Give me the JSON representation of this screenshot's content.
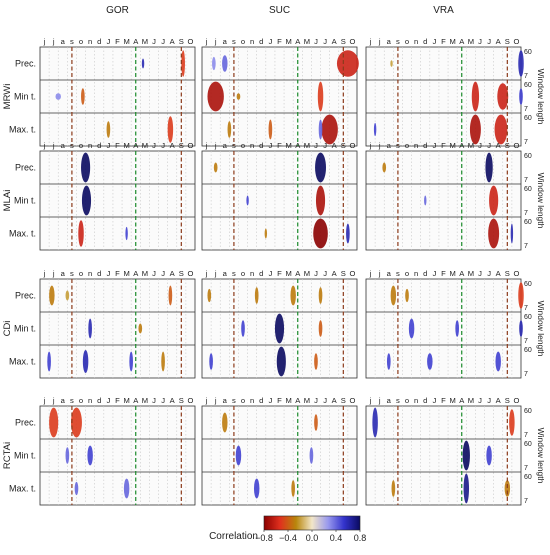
{
  "chart_data": {
    "type": "heatmap",
    "stations": [
      "GOR",
      "SUC",
      "VRA"
    ],
    "indices": [
      "MRWi",
      "MLAi",
      "CDi",
      "RCTAi"
    ],
    "variables": [
      "Prec.",
      "Min t.",
      "Max. t."
    ],
    "month_ticks": [
      "j",
      "j",
      "a",
      "s",
      "o",
      "n",
      "d",
      "J",
      "F",
      "M",
      "A",
      "M",
      "J",
      "J",
      "A",
      "S",
      "O"
    ],
    "window_length_ticks": [
      "60",
      "7"
    ],
    "window_length_label": "Window length",
    "colorbar": {
      "label": "Correlation",
      "ticks": [
        "−0.8",
        "−0.4",
        "0.0",
        "0.4",
        "0.8"
      ],
      "range": [
        -0.8,
        0.8
      ],
      "colors": [
        "#8b0000",
        "#e0301e",
        "#b8860b",
        "#f2e6c8",
        "#9999ee",
        "#3333cc",
        "#0a0a60"
      ]
    },
    "reference_lines": {
      "brown_dashed_months": [
        3.5,
        15.5
      ],
      "green_dashed_month": 10.5
    },
    "blobs": [
      {
        "row": 0,
        "st": 0,
        "v": 0,
        "m": 10.8,
        "w": 0.1,
        "r": 0.3,
        "c": 0.6
      },
      {
        "row": 0,
        "st": 0,
        "v": 0,
        "m": 15.2,
        "w": 0.2,
        "r": 0.8,
        "c": -0.5
      },
      {
        "row": 0,
        "st": 0,
        "v": 1,
        "m": 1.5,
        "w": 0.3,
        "r": 0.2,
        "c": 0.3
      },
      {
        "row": 0,
        "st": 0,
        "v": 1,
        "m": 4.2,
        "w": 0.2,
        "r": 0.5,
        "c": -0.4
      },
      {
        "row": 0,
        "st": 0,
        "v": 2,
        "m": 7.0,
        "w": 0.2,
        "r": 0.5,
        "c": -0.3
      },
      {
        "row": 0,
        "st": 0,
        "v": 2,
        "m": 13.8,
        "w": 0.3,
        "r": 0.8,
        "c": -0.5
      },
      {
        "row": 0,
        "st": 1,
        "v": 0,
        "m": 0.8,
        "w": 0.2,
        "r": 0.4,
        "c": 0.3
      },
      {
        "row": 0,
        "st": 1,
        "v": 0,
        "m": 2.0,
        "w": 0.3,
        "r": 0.5,
        "c": 0.4
      },
      {
        "row": 0,
        "st": 1,
        "v": 0,
        "m": 15.5,
        "w": 1.2,
        "r": 0.8,
        "c": -0.6
      },
      {
        "row": 0,
        "st": 1,
        "v": 1,
        "m": 1.0,
        "w": 0.9,
        "r": 0.9,
        "c": -0.7
      },
      {
        "row": 0,
        "st": 1,
        "v": 1,
        "m": 3.5,
        "w": 0.2,
        "r": 0.2,
        "c": -0.3
      },
      {
        "row": 0,
        "st": 1,
        "v": 1,
        "m": 12.5,
        "w": 0.3,
        "r": 0.9,
        "c": -0.5
      },
      {
        "row": 0,
        "st": 1,
        "v": 2,
        "m": 2.5,
        "w": 0.2,
        "r": 0.5,
        "c": -0.3
      },
      {
        "row": 0,
        "st": 1,
        "v": 2,
        "m": 7.0,
        "w": 0.2,
        "r": 0.6,
        "c": -0.4
      },
      {
        "row": 0,
        "st": 1,
        "v": 2,
        "m": 13.5,
        "w": 0.9,
        "r": 0.9,
        "c": -0.7
      },
      {
        "row": 0,
        "st": 1,
        "v": 2,
        "m": 12.5,
        "w": 0.2,
        "r": 0.6,
        "c": 0.4
      },
      {
        "row": 0,
        "st": 2,
        "v": 0,
        "m": 16.5,
        "w": 0.3,
        "r": 0.8,
        "c": 0.6
      },
      {
        "row": 0,
        "st": 2,
        "v": 0,
        "m": 2.3,
        "w": 0.1,
        "r": 0.2,
        "c": -0.2
      },
      {
        "row": 0,
        "st": 2,
        "v": 1,
        "m": 11.5,
        "w": 0.4,
        "r": 0.9,
        "c": -0.6
      },
      {
        "row": 0,
        "st": 2,
        "v": 1,
        "m": 14.5,
        "w": 0.6,
        "r": 0.8,
        "c": -0.6
      },
      {
        "row": 0,
        "st": 2,
        "v": 1,
        "m": 16.5,
        "w": 0.2,
        "r": 0.5,
        "c": 0.5
      },
      {
        "row": 0,
        "st": 2,
        "v": 2,
        "m": 11.5,
        "w": 0.6,
        "r": 0.9,
        "c": -0.7
      },
      {
        "row": 0,
        "st": 2,
        "v": 2,
        "m": 14.3,
        "w": 0.7,
        "r": 0.9,
        "c": -0.6
      },
      {
        "row": 0,
        "st": 2,
        "v": 2,
        "m": 0.5,
        "w": 0.1,
        "r": 0.4,
        "c": 0.5
      },
      {
        "row": 1,
        "st": 0,
        "v": 0,
        "m": 4.5,
        "w": 0.5,
        "r": 0.9,
        "c": 0.8
      },
      {
        "row": 1,
        "st": 0,
        "v": 1,
        "m": 4.6,
        "w": 0.5,
        "r": 0.9,
        "c": 0.8
      },
      {
        "row": 1,
        "st": 0,
        "v": 2,
        "m": 4.0,
        "w": 0.3,
        "r": 0.8,
        "c": -0.6
      },
      {
        "row": 1,
        "st": 0,
        "v": 2,
        "m": 9.0,
        "w": 0.1,
        "r": 0.4,
        "c": 0.5
      },
      {
        "row": 1,
        "st": 1,
        "v": 0,
        "m": 12.5,
        "w": 0.6,
        "r": 0.9,
        "c": 0.8
      },
      {
        "row": 1,
        "st": 1,
        "v": 0,
        "m": 1.0,
        "w": 0.2,
        "r": 0.3,
        "c": -0.3
      },
      {
        "row": 1,
        "st": 1,
        "v": 1,
        "m": 12.5,
        "w": 0.5,
        "r": 0.9,
        "c": -0.7
      },
      {
        "row": 1,
        "st": 1,
        "v": 1,
        "m": 4.5,
        "w": 0.1,
        "r": 0.3,
        "c": 0.5
      },
      {
        "row": 1,
        "st": 1,
        "v": 2,
        "m": 12.5,
        "w": 0.8,
        "r": 0.9,
        "c": -0.8
      },
      {
        "row": 1,
        "st": 1,
        "v": 2,
        "m": 15.5,
        "w": 0.2,
        "r": 0.6,
        "c": 0.6
      },
      {
        "row": 1,
        "st": 1,
        "v": 2,
        "m": 6.5,
        "w": 0.1,
        "r": 0.3,
        "c": -0.3
      },
      {
        "row": 1,
        "st": 2,
        "v": 0,
        "m": 13.0,
        "w": 0.4,
        "r": 0.9,
        "c": 0.8
      },
      {
        "row": 1,
        "st": 2,
        "v": 0,
        "m": 1.5,
        "w": 0.2,
        "r": 0.3,
        "c": -0.3
      },
      {
        "row": 1,
        "st": 2,
        "v": 1,
        "m": 13.5,
        "w": 0.5,
        "r": 0.9,
        "c": -0.6
      },
      {
        "row": 1,
        "st": 2,
        "v": 1,
        "m": 6.0,
        "w": 0.1,
        "r": 0.3,
        "c": 0.4
      },
      {
        "row": 1,
        "st": 2,
        "v": 2,
        "m": 13.5,
        "w": 0.6,
        "r": 0.9,
        "c": -0.7
      },
      {
        "row": 1,
        "st": 2,
        "v": 2,
        "m": 15.5,
        "w": 0.1,
        "r": 0.6,
        "c": 0.6
      },
      {
        "row": 2,
        "st": 0,
        "v": 0,
        "m": 0.8,
        "w": 0.3,
        "r": 0.6,
        "c": -0.3
      },
      {
        "row": 2,
        "st": 0,
        "v": 0,
        "m": 2.5,
        "w": 0.2,
        "r": 0.3,
        "c": -0.2
      },
      {
        "row": 2,
        "st": 0,
        "v": 0,
        "m": 13.8,
        "w": 0.2,
        "r": 0.6,
        "c": -0.4
      },
      {
        "row": 2,
        "st": 0,
        "v": 1,
        "m": 5.0,
        "w": 0.2,
        "r": 0.6,
        "c": 0.6
      },
      {
        "row": 2,
        "st": 0,
        "v": 1,
        "m": 10.5,
        "w": 0.2,
        "r": 0.3,
        "c": -0.3
      },
      {
        "row": 2,
        "st": 0,
        "v": 2,
        "m": 0.5,
        "w": 0.2,
        "r": 0.6,
        "c": 0.5
      },
      {
        "row": 2,
        "st": 0,
        "v": 2,
        "m": 4.5,
        "w": 0.3,
        "r": 0.7,
        "c": 0.6
      },
      {
        "row": 2,
        "st": 0,
        "v": 2,
        "m": 9.5,
        "w": 0.2,
        "r": 0.6,
        "c": 0.5
      },
      {
        "row": 2,
        "st": 0,
        "v": 2,
        "m": 13.0,
        "w": 0.2,
        "r": 0.6,
        "c": -0.3
      },
      {
        "row": 2,
        "st": 1,
        "v": 0,
        "m": 0.3,
        "w": 0.2,
        "r": 0.4,
        "c": -0.3
      },
      {
        "row": 2,
        "st": 1,
        "v": 0,
        "m": 5.5,
        "w": 0.2,
        "r": 0.5,
        "c": -0.3
      },
      {
        "row": 2,
        "st": 1,
        "v": 0,
        "m": 9.5,
        "w": 0.3,
        "r": 0.6,
        "c": -0.3
      },
      {
        "row": 2,
        "st": 1,
        "v": 0,
        "m": 12.5,
        "w": 0.2,
        "r": 0.5,
        "c": -0.3
      },
      {
        "row": 2,
        "st": 1,
        "v": 1,
        "m": 8.0,
        "w": 0.5,
        "r": 0.9,
        "c": 0.8
      },
      {
        "row": 2,
        "st": 1,
        "v": 1,
        "m": 4.0,
        "w": 0.2,
        "r": 0.5,
        "c": 0.5
      },
      {
        "row": 2,
        "st": 1,
        "v": 1,
        "m": 12.5,
        "w": 0.2,
        "r": 0.5,
        "c": -0.4
      },
      {
        "row": 2,
        "st": 1,
        "v": 2,
        "m": 0.5,
        "w": 0.2,
        "r": 0.5,
        "c": 0.5
      },
      {
        "row": 2,
        "st": 1,
        "v": 2,
        "m": 8.2,
        "w": 0.5,
        "r": 0.9,
        "c": 0.8
      },
      {
        "row": 2,
        "st": 1,
        "v": 2,
        "m": 12.0,
        "w": 0.2,
        "r": 0.5,
        "c": -0.4
      },
      {
        "row": 2,
        "st": 2,
        "v": 0,
        "m": 2.5,
        "w": 0.3,
        "r": 0.6,
        "c": -0.3
      },
      {
        "row": 2,
        "st": 2,
        "v": 0,
        "m": 4.0,
        "w": 0.2,
        "r": 0.4,
        "c": -0.3
      },
      {
        "row": 2,
        "st": 2,
        "v": 0,
        "m": 16.5,
        "w": 0.3,
        "r": 0.8,
        "c": -0.5
      },
      {
        "row": 2,
        "st": 2,
        "v": 1,
        "m": 4.5,
        "w": 0.3,
        "r": 0.6,
        "c": 0.5
      },
      {
        "row": 2,
        "st": 2,
        "v": 1,
        "m": 9.5,
        "w": 0.2,
        "r": 0.5,
        "c": 0.5
      },
      {
        "row": 2,
        "st": 2,
        "v": 1,
        "m": 16.5,
        "w": 0.2,
        "r": 0.5,
        "c": 0.6
      },
      {
        "row": 2,
        "st": 2,
        "v": 2,
        "m": 2.0,
        "w": 0.2,
        "r": 0.5,
        "c": 0.5
      },
      {
        "row": 2,
        "st": 2,
        "v": 2,
        "m": 6.5,
        "w": 0.3,
        "r": 0.5,
        "c": 0.5
      },
      {
        "row": 2,
        "st": 2,
        "v": 2,
        "m": 14.0,
        "w": 0.3,
        "r": 0.6,
        "c": 0.5
      },
      {
        "row": 3,
        "st": 0,
        "v": 0,
        "m": 1.0,
        "w": 0.5,
        "r": 0.9,
        "c": -0.5
      },
      {
        "row": 3,
        "st": 0,
        "v": 0,
        "m": 3.5,
        "w": 0.6,
        "r": 0.9,
        "c": -0.5
      },
      {
        "row": 3,
        "st": 0,
        "v": 1,
        "m": 2.5,
        "w": 0.2,
        "r": 0.5,
        "c": 0.4
      },
      {
        "row": 3,
        "st": 0,
        "v": 1,
        "m": 5.0,
        "w": 0.3,
        "r": 0.6,
        "c": 0.5
      },
      {
        "row": 3,
        "st": 0,
        "v": 2,
        "m": 3.5,
        "w": 0.2,
        "r": 0.4,
        "c": 0.4
      },
      {
        "row": 3,
        "st": 0,
        "v": 2,
        "m": 9.0,
        "w": 0.3,
        "r": 0.6,
        "c": 0.4
      },
      {
        "row": 3,
        "st": 1,
        "v": 0,
        "m": 2.0,
        "w": 0.3,
        "r": 0.6,
        "c": -0.3
      },
      {
        "row": 3,
        "st": 1,
        "v": 0,
        "m": 12.0,
        "w": 0.2,
        "r": 0.5,
        "c": -0.4
      },
      {
        "row": 3,
        "st": 1,
        "v": 1,
        "m": 3.5,
        "w": 0.3,
        "r": 0.6,
        "c": 0.5
      },
      {
        "row": 3,
        "st": 1,
        "v": 1,
        "m": 11.5,
        "w": 0.2,
        "r": 0.5,
        "c": 0.4
      },
      {
        "row": 3,
        "st": 1,
        "v": 2,
        "m": 5.5,
        "w": 0.3,
        "r": 0.6,
        "c": 0.5
      },
      {
        "row": 3,
        "st": 1,
        "v": 2,
        "m": 9.5,
        "w": 0.2,
        "r": 0.5,
        "c": -0.3
      },
      {
        "row": 3,
        "st": 2,
        "v": 0,
        "m": 0.5,
        "w": 0.3,
        "r": 0.9,
        "c": 0.6
      },
      {
        "row": 3,
        "st": 2,
        "v": 0,
        "m": 15.5,
        "w": 0.3,
        "r": 0.8,
        "c": -0.5
      },
      {
        "row": 3,
        "st": 2,
        "v": 1,
        "m": 10.5,
        "w": 0.4,
        "r": 0.9,
        "c": 0.8
      },
      {
        "row": 3,
        "st": 2,
        "v": 1,
        "m": 13.0,
        "w": 0.3,
        "r": 0.6,
        "c": 0.5
      },
      {
        "row": 3,
        "st": 2,
        "v": 2,
        "m": 2.5,
        "w": 0.2,
        "r": 0.5,
        "c": -0.3
      },
      {
        "row": 3,
        "st": 2,
        "v": 2,
        "m": 10.5,
        "w": 0.3,
        "r": 0.9,
        "c": 0.7
      },
      {
        "row": 3,
        "st": 2,
        "v": 2,
        "m": 15.0,
        "w": 0.3,
        "r": 0.5,
        "c": -0.3
      }
    ]
  }
}
